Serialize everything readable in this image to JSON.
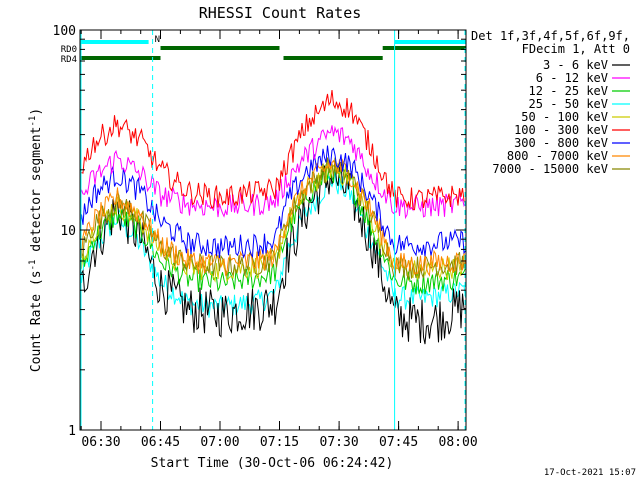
{
  "chart_data": {
    "type": "line",
    "title": "RHESSI Count Rates",
    "xlabel": "Start Time (30-Oct-06 06:24:42)",
    "ylabel_main": "Count Rate (s",
    "ylabel_sup1": "-1",
    "ylabel_mid": " detector segment",
    "ylabel_sup2": "-1",
    "ylabel_end": ")",
    "yscale": "log",
    "ylim": [
      1,
      100
    ],
    "xlim": [
      "06:24:42",
      "08:02:00"
    ],
    "x_ticks": [
      "06:30",
      "06:45",
      "07:00",
      "07:15",
      "07:30",
      "07:45",
      "08:00"
    ],
    "y_ticks": [
      "1",
      "10",
      "100"
    ],
    "legend_header": [
      "Det 1f,3f,4f,5f,6f,9f,",
      "FDecim 1, Att 0"
    ],
    "legend_placement": "right",
    "timestamp": "17-Oct-2021 15:07",
    "series": [
      {
        "name": "3 - 6 keV",
        "color": "#000000",
        "points": [
          [
            "06:24:42",
            4.8
          ],
          [
            "06:28",
            8.0
          ],
          [
            "06:34",
            13.0
          ],
          [
            "06:40",
            9.0
          ],
          [
            "06:45",
            5.2
          ],
          [
            "06:52",
            4.0
          ],
          [
            "07:00",
            3.8
          ],
          [
            "07:10",
            4.1
          ],
          [
            "07:14",
            4.4
          ],
          [
            "07:17",
            7.5
          ],
          [
            "07:22",
            13.0
          ],
          [
            "07:28",
            19.0
          ],
          [
            "07:33",
            15.0
          ],
          [
            "07:38",
            9.0
          ],
          [
            "07:42",
            5.0
          ],
          [
            "07:44",
            3.7
          ],
          [
            "07:50",
            3.5
          ],
          [
            "07:55",
            3.6
          ],
          [
            "08:02",
            4.2
          ]
        ]
      },
      {
        "name": "6 - 12 keV",
        "color": "#ff00ff",
        "points": [
          [
            "06:24:42",
            14.0
          ],
          [
            "06:28",
            18.0
          ],
          [
            "06:34",
            23.0
          ],
          [
            "06:40",
            19.0
          ],
          [
            "06:45",
            15.0
          ],
          [
            "06:52",
            13.5
          ],
          [
            "07:00",
            13.0
          ],
          [
            "07:10",
            13.5
          ],
          [
            "07:14",
            14.0
          ],
          [
            "07:17",
            18.0
          ],
          [
            "07:22",
            24.0
          ],
          [
            "07:28",
            31.0
          ],
          [
            "07:33",
            28.0
          ],
          [
            "07:38",
            19.0
          ],
          [
            "07:42",
            15.0
          ],
          [
            "07:44",
            13.2
          ],
          [
            "07:50",
            13.0
          ],
          [
            "07:55",
            13.2
          ],
          [
            "08:02",
            13.5
          ]
        ]
      },
      {
        "name": "12 - 25 keV",
        "color": "#00cc00",
        "points": [
          [
            "06:24:42",
            6.0
          ],
          [
            "06:28",
            9.0
          ],
          [
            "06:34",
            12.0
          ],
          [
            "06:40",
            10.0
          ],
          [
            "06:45",
            7.0
          ],
          [
            "06:52",
            5.7
          ],
          [
            "07:00",
            5.4
          ],
          [
            "07:10",
            5.8
          ],
          [
            "07:14",
            6.2
          ],
          [
            "07:17",
            10.0
          ],
          [
            "07:22",
            15.0
          ],
          [
            "07:28",
            20.0
          ],
          [
            "07:33",
            17.0
          ],
          [
            "07:38",
            10.5
          ],
          [
            "07:42",
            7.0
          ],
          [
            "07:44",
            5.6
          ],
          [
            "07:50",
            5.4
          ],
          [
            "07:55",
            5.6
          ],
          [
            "08:02",
            5.8
          ]
        ]
      },
      {
        "name": "25 - 50 keV",
        "color": "#00ffff",
        "points": [
          [
            "06:24:42",
            5.5
          ],
          [
            "06:28",
            8.0
          ],
          [
            "06:34",
            11.5
          ],
          [
            "06:40",
            8.5
          ],
          [
            "06:45",
            5.5
          ],
          [
            "06:52",
            4.3
          ],
          [
            "07:00",
            4.1
          ],
          [
            "07:10",
            4.4
          ],
          [
            "07:14",
            4.8
          ],
          [
            "07:17",
            8.0
          ],
          [
            "07:22",
            12.5
          ],
          [
            "07:28",
            18.0
          ],
          [
            "07:33",
            15.0
          ],
          [
            "07:38",
            9.0
          ],
          [
            "07:42",
            6.0
          ],
          [
            "07:44",
            4.6
          ],
          [
            "07:50",
            4.5
          ],
          [
            "07:55",
            4.7
          ],
          [
            "08:02",
            5.0
          ]
        ]
      },
      {
        "name": "50 - 100 keV",
        "color": "#cccc00",
        "points": [
          [
            "06:24:42",
            7.0
          ],
          [
            "06:28",
            10.0
          ],
          [
            "06:34",
            13.5
          ],
          [
            "06:40",
            11.0
          ],
          [
            "06:45",
            8.0
          ],
          [
            "06:52",
            6.5
          ],
          [
            "07:00",
            6.3
          ],
          [
            "07:10",
            6.6
          ],
          [
            "07:14",
            7.0
          ],
          [
            "07:17",
            11.0
          ],
          [
            "07:22",
            16.0
          ],
          [
            "07:28",
            20.5
          ],
          [
            "07:33",
            18.0
          ],
          [
            "07:38",
            11.5
          ],
          [
            "07:42",
            7.8
          ],
          [
            "07:44",
            6.4
          ],
          [
            "07:50",
            6.2
          ],
          [
            "07:55",
            6.4
          ],
          [
            "08:02",
            6.6
          ]
        ]
      },
      {
        "name": "100 - 300 keV",
        "color": "#ff0000",
        "points": [
          [
            "06:24:42",
            20.0
          ],
          [
            "06:28",
            27.0
          ],
          [
            "06:34",
            34.0
          ],
          [
            "06:40",
            28.0
          ],
          [
            "06:45",
            20.0
          ],
          [
            "06:52",
            15.5
          ],
          [
            "07:00",
            14.5
          ],
          [
            "07:10",
            15.5
          ],
          [
            "07:14",
            16.0
          ],
          [
            "07:17",
            22.0
          ],
          [
            "07:22",
            34.0
          ],
          [
            "07:28",
            45.0
          ],
          [
            "07:33",
            40.0
          ],
          [
            "07:38",
            26.0
          ],
          [
            "07:42",
            17.5
          ],
          [
            "07:44",
            14.5
          ],
          [
            "07:50",
            14.2
          ],
          [
            "07:55",
            14.6
          ],
          [
            "08:02",
            15.0
          ]
        ]
      },
      {
        "name": "300 - 800 keV",
        "color": "#0000ff",
        "points": [
          [
            "06:24:42",
            11.0
          ],
          [
            "06:28",
            15.0
          ],
          [
            "06:34",
            19.0
          ],
          [
            "06:40",
            15.5
          ],
          [
            "06:45",
            11.0
          ],
          [
            "06:52",
            8.6
          ],
          [
            "07:00",
            8.2
          ],
          [
            "07:10",
            8.5
          ],
          [
            "07:14",
            9.0
          ],
          [
            "07:17",
            14.0
          ],
          [
            "07:22",
            20.0
          ],
          [
            "07:28",
            24.0
          ],
          [
            "07:33",
            21.0
          ],
          [
            "07:38",
            14.5
          ],
          [
            "07:42",
            10.0
          ],
          [
            "07:44",
            8.5
          ],
          [
            "07:50",
            8.4
          ],
          [
            "07:55",
            8.6
          ],
          [
            "08:02",
            8.8
          ]
        ]
      },
      {
        "name": "800 - 7000 keV",
        "color": "#ff8800",
        "points": [
          [
            "06:24:42",
            8.0
          ],
          [
            "06:28",
            11.0
          ],
          [
            "06:34",
            14.5
          ],
          [
            "06:40",
            12.0
          ],
          [
            "06:45",
            8.5
          ],
          [
            "06:52",
            7.0
          ],
          [
            "07:00",
            6.8
          ],
          [
            "07:10",
            7.0
          ],
          [
            "07:14",
            7.5
          ],
          [
            "07:17",
            12.0
          ],
          [
            "07:22",
            17.0
          ],
          [
            "07:28",
            21.5
          ],
          [
            "07:33",
            19.0
          ],
          [
            "07:38",
            12.5
          ],
          [
            "07:42",
            8.5
          ],
          [
            "07:44",
            6.8
          ],
          [
            "07:50",
            6.7
          ],
          [
            "07:55",
            6.9
          ],
          [
            "08:02",
            7.0
          ]
        ]
      },
      {
        "name": "7000 - 15000 keV",
        "color": "#888800",
        "points": [
          [
            "06:24:42",
            7.5
          ],
          [
            "06:28",
            10.5
          ],
          [
            "06:34",
            14.0
          ],
          [
            "06:40",
            11.5
          ],
          [
            "06:45",
            8.2
          ],
          [
            "06:52",
            6.8
          ],
          [
            "07:00",
            6.6
          ],
          [
            "07:10",
            6.8
          ],
          [
            "07:14",
            7.2
          ],
          [
            "07:17",
            11.5
          ],
          [
            "07:22",
            16.5
          ],
          [
            "07:28",
            21.0
          ],
          [
            "07:33",
            18.5
          ],
          [
            "07:38",
            12.0
          ],
          [
            "07:42",
            8.2
          ],
          [
            "07:44",
            6.6
          ],
          [
            "07:50",
            6.5
          ],
          [
            "07:55",
            6.7
          ],
          [
            "08:02",
            6.8
          ]
        ]
      }
    ],
    "flag_bars": [
      {
        "color": "#00ffff",
        "label": "",
        "segments": [
          [
            "06:24:42",
            "06:42:00"
          ],
          [
            "07:44:00",
            "08:02:00"
          ]
        ]
      },
      {
        "color": "#006600",
        "label": "RD0",
        "segments": [
          [
            "06:45:00",
            "07:15:00"
          ],
          [
            "07:41:00",
            "08:02:00"
          ]
        ]
      },
      {
        "color": "#006600",
        "label": "RD4",
        "segments": [
          [
            "06:24:42",
            "06:45:00"
          ],
          [
            "07:16:00",
            "07:41:00"
          ]
        ]
      }
    ],
    "n_marker": {
      "label": "N",
      "time": "06:42:30"
    },
    "vertical_lines": [
      {
        "time": "06:24:42",
        "style": "solid",
        "color": "#00ffff"
      },
      {
        "time": "06:43:00",
        "style": "dashed",
        "color": "#00ffff"
      },
      {
        "time": "07:44:00",
        "style": "solid",
        "color": "#00ffff"
      },
      {
        "time": "08:02:00",
        "style": "dashed",
        "color": "#00ffff"
      }
    ]
  }
}
